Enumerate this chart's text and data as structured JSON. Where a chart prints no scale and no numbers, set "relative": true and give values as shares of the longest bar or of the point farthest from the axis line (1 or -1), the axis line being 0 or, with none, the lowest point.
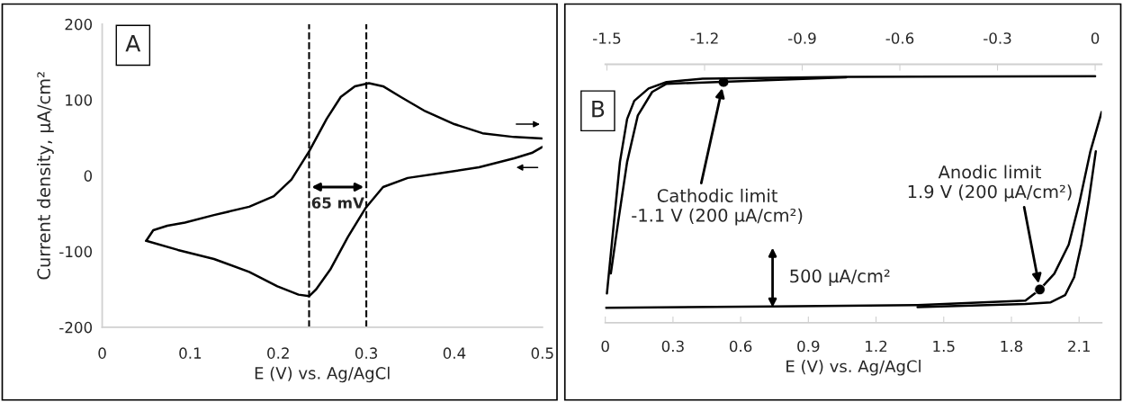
{
  "chart_data": [
    {
      "type": "line",
      "xlabel": "E (V) vs. Ag/AgCl",
      "ylabel": "Current density, µA/cm²",
      "xlim": [
        0,
        0.5
      ],
      "ylim": [
        -200,
        200
      ],
      "xticks": [
        0,
        0.1,
        0.2,
        0.3,
        0.4,
        0.5
      ],
      "yticks": [
        -200,
        -100,
        0,
        100,
        200
      ],
      "grid": false,
      "legend": false,
      "line_style": "solid",
      "series": [
        {
          "color": "#000000",
          "x": [
            0.05,
            0.058,
            0.074,
            0.094,
            0.127,
            0.167,
            0.195,
            0.215,
            0.235,
            0.255,
            0.271,
            0.287,
            0.303,
            0.319,
            0.339,
            0.367,
            0.4,
            0.432,
            0.468,
            0.5
          ],
          "values": [
            -86,
            -72,
            -66,
            -62,
            -52,
            -41,
            -27,
            -5,
            32,
            75,
            104,
            118,
            122,
            118,
            104,
            85,
            68,
            56,
            51,
            49
          ]
        },
        {
          "color": "#000000",
          "x": [
            0.05,
            0.086,
            0.127,
            0.167,
            0.199,
            0.223,
            0.235,
            0.243,
            0.259,
            0.279,
            0.299,
            0.319,
            0.347,
            0.388,
            0.428,
            0.468,
            0.488,
            0.5
          ],
          "values": [
            -86,
            -98,
            -110,
            -127,
            -146,
            -157,
            -159,
            -150,
            -124,
            -81,
            -43,
            -15,
            -3,
            4,
            11,
            23,
            30,
            38
          ]
        }
      ],
      "ref_lines": [
        {
          "axis": "x",
          "value": 0.3,
          "line_style": "dashed",
          "color": "#000000"
        },
        {
          "axis": "x",
          "value": 0.235,
          "line_style": "dashed",
          "color": "#000000"
        }
      ],
      "annotations": [
        "A",
        "65 mV"
      ]
    },
    {
      "type": "line",
      "relative": true,
      "xlabel": "E (V) vs. Ag/AgCl",
      "xlim": [
        0,
        2.2
      ],
      "xticks": [
        0,
        0.3,
        0.6,
        0.9,
        1.2,
        1.5,
        1.8,
        2.1
      ],
      "x2lim": [
        -1.505,
        0.02
      ],
      "x2ticks": [
        -1.5,
        -1.2,
        -0.9,
        -0.6,
        -0.3,
        0
      ],
      "tick_labels": "x",
      "grid": false,
      "legend": false,
      "line_style": "solid",
      "series": [
        {
          "color": "#000000",
          "x": [
            0,
            0.747,
            1.384,
            1.862,
            1.926,
            1.99,
            2.054,
            2.102,
            2.15,
            2.2
          ],
          "values": [
            0.061,
            0.066,
            0.072,
            0.09,
            0.135,
            0.199,
            0.317,
            0.49,
            0.695,
            0.855
          ]
        },
        {
          "color": "#000000",
          "x": [
            1.384,
            1.862,
            1.974,
            2.038,
            2.078,
            2.11,
            2.142,
            2.174
          ],
          "values": [
            0.064,
            0.076,
            0.083,
            0.112,
            0.185,
            0.317,
            0.49,
            0.695
          ]
        },
        {
          "color": "#000000",
          "axis": "x2",
          "x": [
            -1.5,
            -1.482,
            -1.46,
            -1.438,
            -1.416,
            -1.372,
            -1.317,
            -1.206,
            -0.765,
            0
          ],
          "values": [
            0.119,
            0.36,
            0.652,
            0.826,
            0.9,
            0.95,
            0.976,
            0.99,
            0.997,
            1.0
          ]
        },
        {
          "color": "#000000",
          "axis": "x2",
          "x": [
            -1.488,
            -1.466,
            -1.438,
            -1.405,
            -1.361,
            -1.317,
            -0.765
          ],
          "values": [
            0.2,
            0.404,
            0.652,
            0.841,
            0.936,
            0.969,
            0.995
          ]
        },
        {
          "type": "scatter",
          "marker": "circle",
          "color": "#000000",
          "x": [
            0.524,
            1.926
          ],
          "values": [
            0.976,
            0.135
          ]
        }
      ],
      "annotations": [
        "B",
        "Cathodic limit\n-1.1 V (200 µA/cm²)",
        "Anodic limit\n1.9 V (200 µA/cm²)",
        "500 µA/cm²"
      ]
    }
  ]
}
